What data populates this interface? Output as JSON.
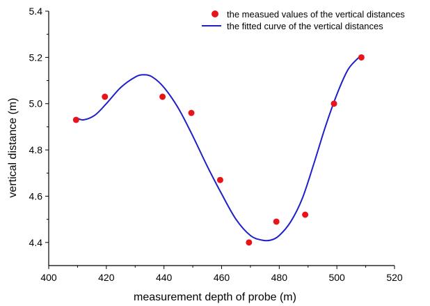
{
  "chart_data": {
    "type": "scatter",
    "title": "",
    "xlabel": "measurement depth of probe (m)",
    "ylabel": "vertical distance (m)",
    "xlim": [
      400,
      520
    ],
    "ylim": [
      4.3,
      5.4
    ],
    "xticks": [
      400,
      420,
      440,
      460,
      480,
      500,
      520
    ],
    "xtick_labels": [
      "400",
      "420",
      "440",
      "460",
      "480",
      "500",
      "520"
    ],
    "yticks": [
      4.4,
      4.6,
      4.8,
      5.0,
      5.2,
      5.4
    ],
    "ytick_labels": [
      "4.4",
      "4.6",
      "4.8",
      "5.0",
      "5.2",
      "5.4"
    ],
    "grid": false,
    "legend_position": "top-right",
    "series": [
      {
        "name": "the measued values of the vertical distances",
        "type": "scatter",
        "color": "#e8141c",
        "x": [
          409.5,
          419.5,
          439.5,
          449.5,
          459.5,
          469.5,
          479,
          489,
          499,
          508.5
        ],
        "y": [
          4.93,
          5.03,
          5.03,
          4.96,
          4.67,
          4.4,
          4.49,
          4.52,
          5.0,
          5.2
        ]
      },
      {
        "name": "the fitted curve of the vertical distances",
        "type": "line",
        "color": "#1f1fc9",
        "x": [
          409.5,
          412,
          416,
          420,
          425,
          430,
          433,
          436,
          440,
          445,
          450,
          455,
          460,
          465,
          470,
          474,
          477,
          480,
          484,
          488,
          492,
          496,
          500,
          504,
          508.5
        ],
        "y": [
          4.94,
          4.93,
          4.95,
          5.0,
          5.07,
          5.115,
          5.125,
          5.115,
          5.07,
          4.98,
          4.86,
          4.73,
          4.61,
          4.5,
          4.43,
          4.41,
          4.41,
          4.43,
          4.49,
          4.59,
          4.74,
          4.9,
          5.04,
          5.15,
          5.21
        ]
      }
    ]
  }
}
